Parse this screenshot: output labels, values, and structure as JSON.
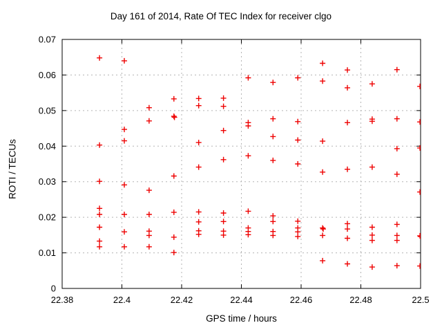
{
  "chart_data": {
    "type": "scatter",
    "title": "Day 161 of 2014, Rate Of TEC Index for receiver clgo",
    "xlabel": "GPS time / hours",
    "ylabel": "ROTI / TECUs",
    "xlim": [
      22.38,
      22.5
    ],
    "ylim": [
      0,
      0.07
    ],
    "x_ticks": [
      22.38,
      22.4,
      22.42,
      22.44,
      22.46,
      22.48,
      22.5
    ],
    "x_tick_labels": [
      "22.38",
      "22.4",
      "22.42",
      "22.44",
      "22.46",
      "22.48",
      "22.5"
    ],
    "y_ticks": [
      0,
      0.01,
      0.02,
      0.03,
      0.04,
      0.05,
      0.06,
      0.07
    ],
    "y_tick_labels": [
      "0",
      "0.01",
      "0.02",
      "0.03",
      "0.04",
      "0.05",
      "0.06",
      "0.07"
    ],
    "grid": true,
    "legend_position": "none",
    "marker": "plus",
    "marker_color": "#ee0000",
    "grid_color": "#b3b3b3",
    "border_color": "#000000",
    "series": [
      {
        "name": "ROTI",
        "points": [
          [
            22.3925,
            0.0648
          ],
          [
            22.3925,
            0.0403
          ],
          [
            22.3925,
            0.0301
          ],
          [
            22.3925,
            0.0225
          ],
          [
            22.3925,
            0.0208
          ],
          [
            22.3925,
            0.0172
          ],
          [
            22.3925,
            0.0133
          ],
          [
            22.3925,
            0.0117
          ],
          [
            22.4008,
            0.064
          ],
          [
            22.4008,
            0.0447
          ],
          [
            22.4008,
            0.0415
          ],
          [
            22.4008,
            0.0291
          ],
          [
            22.4008,
            0.0208
          ],
          [
            22.4008,
            0.0159
          ],
          [
            22.4008,
            0.0117
          ],
          [
            22.4091,
            0.0508
          ],
          [
            22.4091,
            0.0471
          ],
          [
            22.4091,
            0.0276
          ],
          [
            22.4091,
            0.0208
          ],
          [
            22.4091,
            0.0161
          ],
          [
            22.4091,
            0.0149
          ],
          [
            22.4091,
            0.0117
          ],
          [
            22.4174,
            0.0533
          ],
          [
            22.4174,
            0.0484
          ],
          [
            22.4176,
            0.0481
          ],
          [
            22.4174,
            0.0316
          ],
          [
            22.4174,
            0.0214
          ],
          [
            22.4174,
            0.0144
          ],
          [
            22.4174,
            0.0101
          ],
          [
            22.4257,
            0.0534
          ],
          [
            22.4257,
            0.0514
          ],
          [
            22.4257,
            0.041
          ],
          [
            22.4257,
            0.0341
          ],
          [
            22.4257,
            0.0215
          ],
          [
            22.4257,
            0.0187
          ],
          [
            22.4257,
            0.0162
          ],
          [
            22.4257,
            0.0152
          ],
          [
            22.434,
            0.0535
          ],
          [
            22.434,
            0.0512
          ],
          [
            22.434,
            0.0444
          ],
          [
            22.434,
            0.0362
          ],
          [
            22.434,
            0.0212
          ],
          [
            22.434,
            0.0188
          ],
          [
            22.434,
            0.0161
          ],
          [
            22.434,
            0.015
          ],
          [
            22.4423,
            0.0592
          ],
          [
            22.4423,
            0.0466
          ],
          [
            22.4423,
            0.0457
          ],
          [
            22.4423,
            0.0373
          ],
          [
            22.4423,
            0.0217
          ],
          [
            22.4423,
            0.017
          ],
          [
            22.4423,
            0.016
          ],
          [
            22.4423,
            0.0151
          ],
          [
            22.4506,
            0.0579
          ],
          [
            22.4506,
            0.0477
          ],
          [
            22.4506,
            0.0427
          ],
          [
            22.4506,
            0.036
          ],
          [
            22.4506,
            0.0204
          ],
          [
            22.4506,
            0.0188
          ],
          [
            22.4506,
            0.016
          ],
          [
            22.4506,
            0.0149
          ],
          [
            22.4589,
            0.0592
          ],
          [
            22.4589,
            0.0469
          ],
          [
            22.4589,
            0.0417
          ],
          [
            22.4589,
            0.035
          ],
          [
            22.4589,
            0.0189
          ],
          [
            22.4589,
            0.017
          ],
          [
            22.4589,
            0.0159
          ],
          [
            22.4589,
            0.0146
          ],
          [
            22.4672,
            0.0633
          ],
          [
            22.4672,
            0.0583
          ],
          [
            22.4672,
            0.0414
          ],
          [
            22.4672,
            0.0327
          ],
          [
            22.4672,
            0.017
          ],
          [
            22.4674,
            0.0167
          ],
          [
            22.4672,
            0.0149
          ],
          [
            22.4672,
            0.0078
          ],
          [
            22.4755,
            0.0614
          ],
          [
            22.4755,
            0.0564
          ],
          [
            22.4755,
            0.0466
          ],
          [
            22.4755,
            0.0335
          ],
          [
            22.4755,
            0.0182
          ],
          [
            22.4755,
            0.0167
          ],
          [
            22.4755,
            0.0141
          ],
          [
            22.4755,
            0.0069
          ],
          [
            22.4838,
            0.0575
          ],
          [
            22.4838,
            0.0476
          ],
          [
            22.4838,
            0.047
          ],
          [
            22.4838,
            0.0341
          ],
          [
            22.4838,
            0.0172
          ],
          [
            22.4838,
            0.015
          ],
          [
            22.4838,
            0.0135
          ],
          [
            22.4838,
            0.006
          ],
          [
            22.4921,
            0.0615
          ],
          [
            22.4921,
            0.0477
          ],
          [
            22.4921,
            0.0393
          ],
          [
            22.4921,
            0.0321
          ],
          [
            22.4921,
            0.018
          ],
          [
            22.4921,
            0.0149
          ],
          [
            22.4921,
            0.0135
          ],
          [
            22.4921,
            0.0064
          ],
          [
            22.4998,
            0.0568
          ],
          [
            22.4998,
            0.0468
          ],
          [
            22.4998,
            0.0395
          ],
          [
            22.4998,
            0.0271
          ],
          [
            22.4998,
            0.0148
          ],
          [
            22.5,
            0.0146
          ],
          [
            22.4998,
            0.0063
          ]
        ]
      }
    ]
  }
}
